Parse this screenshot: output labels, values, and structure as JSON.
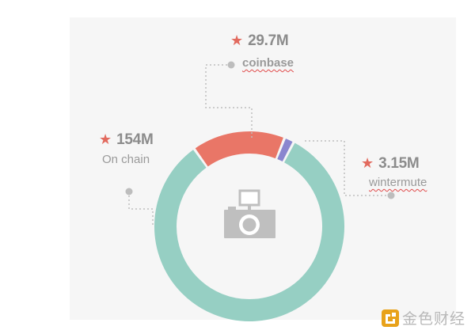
{
  "chart_data": {
    "type": "pie",
    "donut": true,
    "slices": [
      {
        "label": "On chain",
        "value_text": "154M",
        "value": 154,
        "color": "#96cfc3"
      },
      {
        "label": "coinbase",
        "value_text": "29.7M",
        "value": 29.7,
        "color": "#e97667"
      },
      {
        "label": "wintermute",
        "value_text": "3.15M",
        "value": 3.15,
        "color": "#8a86cf"
      }
    ],
    "center_icon": "camera-icon"
  },
  "watermark": {
    "text": "金色财经",
    "icon": "jinse-logo-icon",
    "color": "#e8a21a"
  }
}
